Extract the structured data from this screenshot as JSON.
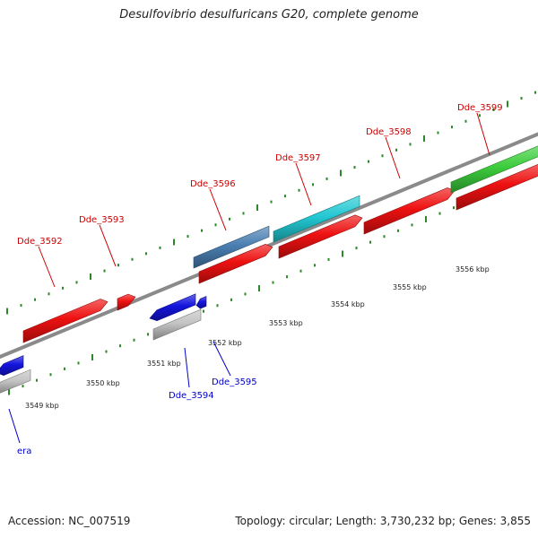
{
  "title": "Desulfovibrio desulfuricans G20, complete genome",
  "footer": {
    "accession": "Accession: NC_007519",
    "topology": "Topology: circular; Length: 3,730,232 bp; Genes: 3,855"
  },
  "colors": {
    "backbone": "#8a8a8a",
    "tick": "#2a8a2a",
    "forward_label": "#cc0000",
    "reverse_label": "#0000cc",
    "red": "#ee1111",
    "blue": "#1414dd",
    "cyan": "#22c8d2",
    "steelblue": "#4a7fb2",
    "green": "#3ccd3c",
    "gray": "#c4c4c4"
  },
  "scale": {
    "kbp_labels": [
      "3549 kbp",
      "3550 kbp",
      "3551 kbp",
      "3552 kbp",
      "3553 kbp",
      "3554 kbp",
      "3555 kbp",
      "3556 kbp"
    ]
  },
  "genes": [
    {
      "label": "Dde_3592",
      "strand": "forward",
      "color": "red"
    },
    {
      "label": "Dde_3593",
      "strand": "forward",
      "color": "red"
    },
    {
      "label": "Dde_3596",
      "strand": "forward",
      "color": "steelblue"
    },
    {
      "label": "Dde_3597",
      "strand": "forward",
      "color": "cyan"
    },
    {
      "label": "Dde_3598",
      "strand": "forward",
      "color": "red"
    },
    {
      "label": "Dde_3599",
      "strand": "forward",
      "color": "green"
    },
    {
      "label": "era",
      "strand": "reverse",
      "color": "blue"
    },
    {
      "label": "Dde_3594",
      "strand": "reverse",
      "color": "blue"
    },
    {
      "label": "Dde_3595",
      "strand": "reverse",
      "color": "blue"
    }
  ]
}
